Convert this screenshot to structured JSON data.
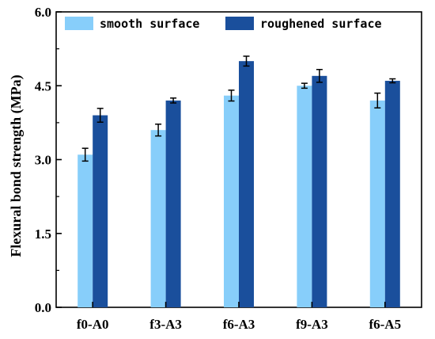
{
  "chart_data": {
    "type": "bar",
    "categories": [
      "f0-A0",
      "f3-A3",
      "f6-A3",
      "f9-A3",
      "f6-A5"
    ],
    "series": [
      {
        "name": "smooth surface",
        "color": "#87CEFA",
        "values": [
          3.1,
          3.6,
          4.3,
          4.5,
          4.2
        ],
        "errors": [
          0.13,
          0.12,
          0.11,
          0.05,
          0.15
        ]
      },
      {
        "name": "roughened surface",
        "color": "#1A4F9C",
        "values": [
          3.9,
          4.2,
          5.0,
          4.7,
          4.6
        ],
        "errors": [
          0.14,
          0.05,
          0.1,
          0.13,
          0.04
        ]
      }
    ],
    "ylabel": "Flexural bond strength (MPa)",
    "xlabel": "",
    "ylim": [
      0,
      6.0
    ],
    "yticks": [
      "0.0",
      "1.5",
      "3.0",
      "4.5",
      "6.0"
    ],
    "legend": "top-left, horizontal"
  }
}
